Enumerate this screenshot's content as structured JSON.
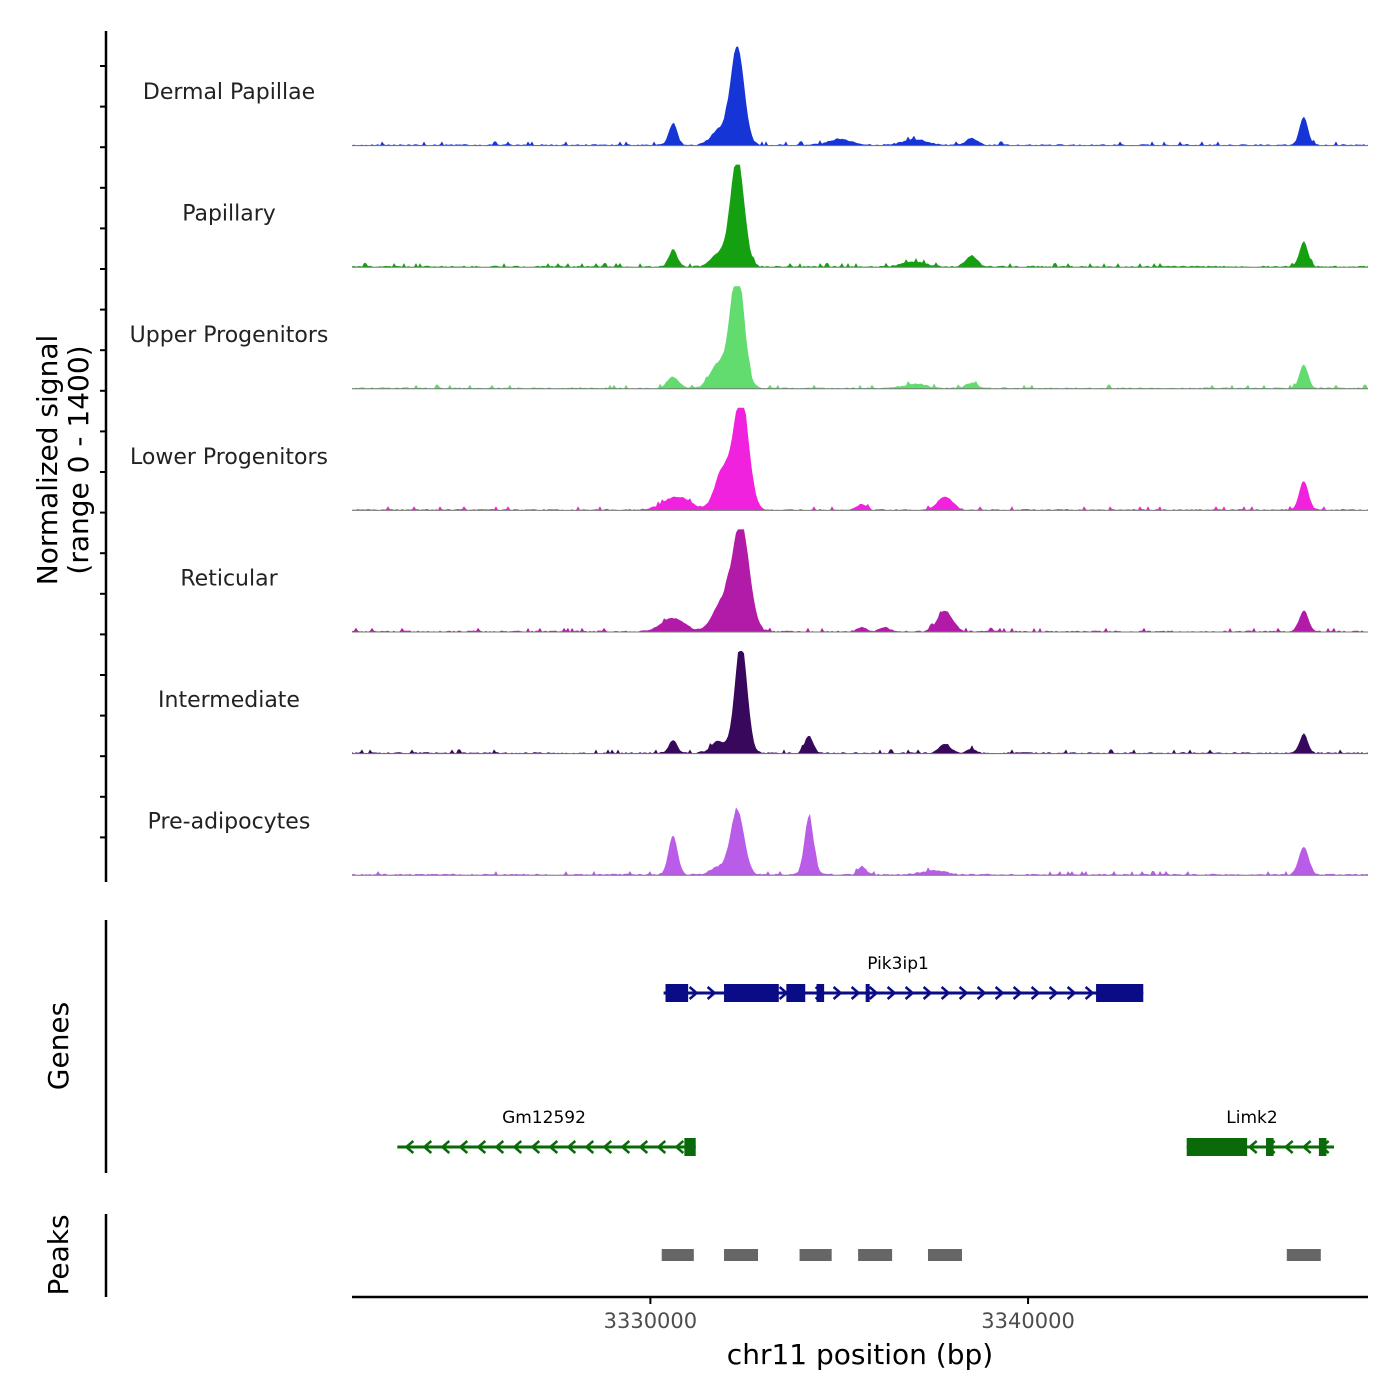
{
  "chart_data": {
    "type": "area",
    "title": "",
    "region": {
      "chromosome": "chr11",
      "start": 3322100,
      "end": 3349000
    },
    "x_axis": {
      "label": "chr11 position (bp)",
      "ticks": [
        3330000,
        3340000
      ],
      "tick_labels": [
        "3330000",
        "3340000"
      ]
    },
    "coverage": {
      "ylabel": "Normalized signal\n(range 0 - 1400)",
      "ylim": [
        0,
        1400
      ],
      "tracks": [
        {
          "name": "Dermal Papillae",
          "color": "#1635d6",
          "peaks": [
            [
              3330600,
              300,
              110
            ],
            [
              3331800,
              200,
              200
            ],
            [
              3332300,
              1350,
              180
            ],
            [
              3335000,
              80,
              300
            ],
            [
              3337000,
              80,
              300
            ],
            [
              3338500,
              90,
              150
            ],
            [
              3347300,
              390,
              110
            ]
          ]
        },
        {
          "name": "Papillary",
          "color": "#15a011",
          "peaks": [
            [
              3330600,
              230,
              110
            ],
            [
              3331800,
              170,
              200
            ],
            [
              3332300,
              1500,
              180
            ],
            [
              3337000,
              70,
              300
            ],
            [
              3338500,
              150,
              150
            ],
            [
              3347300,
              340,
              110
            ]
          ]
        },
        {
          "name": "Upper Progenitors",
          "color": "#62db6f",
          "peaks": [
            [
              3330600,
              160,
              150
            ],
            [
              3331800,
              330,
              220
            ],
            [
              3332300,
              1650,
              180
            ],
            [
              3337000,
              60,
              300
            ],
            [
              3338500,
              70,
              150
            ],
            [
              3347300,
              330,
              110
            ]
          ]
        },
        {
          "name": "Lower Progenitors",
          "color": "#f022dd",
          "peaks": [
            [
              3330700,
              180,
              350
            ],
            [
              3331900,
              520,
              200
            ],
            [
              3332400,
              1550,
              200
            ],
            [
              3335600,
              80,
              120
            ],
            [
              3337800,
              180,
              200
            ],
            [
              3347300,
              400,
              120
            ]
          ]
        },
        {
          "name": "Reticular",
          "color": "#b11ba8",
          "peaks": [
            [
              3330600,
              180,
              300
            ],
            [
              3331900,
              380,
              250
            ],
            [
              3332400,
              1450,
              220
            ],
            [
              3335600,
              60,
              120
            ],
            [
              3336200,
              60,
              120
            ],
            [
              3337800,
              280,
              200
            ],
            [
              3347300,
              290,
              120
            ]
          ]
        },
        {
          "name": "Intermediate",
          "color": "#37085c",
          "peaks": [
            [
              3330600,
              170,
              110
            ],
            [
              3331800,
              160,
              200
            ],
            [
              3332400,
              1540,
              160
            ],
            [
              3334200,
              240,
              110
            ],
            [
              3337800,
              130,
              150
            ],
            [
              3338500,
              60,
              100
            ],
            [
              3347300,
              260,
              110
            ]
          ]
        },
        {
          "name": "Pre-adipocytes",
          "color": "#b95de9",
          "peaks": [
            [
              3330600,
              540,
              120
            ],
            [
              3331800,
              100,
              200
            ],
            [
              3332300,
              880,
              180
            ],
            [
              3334200,
              800,
              120
            ],
            [
              3335600,
              120,
              100
            ],
            [
              3337500,
              60,
              300
            ],
            [
              3347300,
              380,
              130
            ]
          ]
        }
      ]
    },
    "genes": {
      "label": "Genes",
      "items": [
        {
          "name": "Pik3ip1",
          "strand": "+",
          "color": "#0a0c87",
          "start": 3330350,
          "end": 3343050,
          "exons": [
            [
              3330400,
              3331000
            ],
            [
              3331950,
              3333400
            ],
            [
              3333600,
              3334100
            ],
            [
              3334400,
              3334600
            ],
            [
              3335700,
              3335800
            ],
            [
              3341800,
              3343050
            ]
          ]
        },
        {
          "name": "Gm12592",
          "strand": "-",
          "color": "#0a6a0a",
          "start": 3323300,
          "end": 3331200,
          "exons": [
            [
              3330900,
              3331200
            ]
          ]
        },
        {
          "name": "Limk2",
          "strand": "-",
          "color": "#0a6a0a",
          "start": 3344200,
          "end": 3348100,
          "exons": [
            [
              3344200,
              3345800
            ],
            [
              3346300,
              3346500
            ],
            [
              3347700,
              3347900
            ]
          ]
        }
      ]
    },
    "peaks": {
      "label": "Peaks",
      "color": "#666666",
      "regions": [
        [
          3330300,
          3331150
        ],
        [
          3331950,
          3332850
        ],
        [
          3333950,
          3334800
        ],
        [
          3335500,
          3336400
        ],
        [
          3337350,
          3338250
        ],
        [
          3346850,
          3347750
        ]
      ]
    }
  }
}
